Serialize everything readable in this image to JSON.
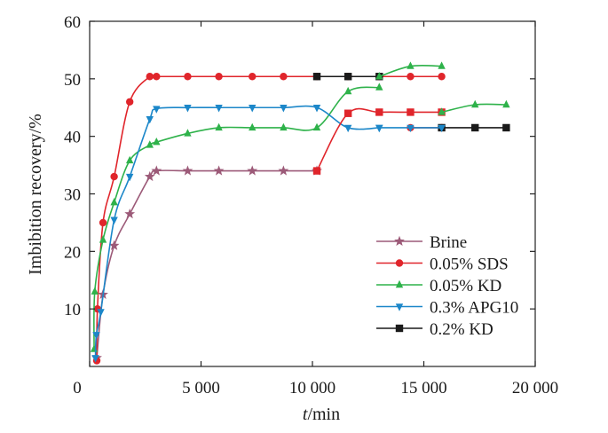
{
  "chart_data": {
    "type": "line",
    "xlabel_prefix": "t",
    "xlabel_suffix": "/min",
    "ylabel": "Imbibition recovery/%",
    "xlim": [
      0,
      20000
    ],
    "ylim": [
      0,
      60
    ],
    "x_ticks": [
      0,
      5000,
      10000,
      15000,
      20000
    ],
    "x_tick_labels": [
      "0",
      "5 000",
      "10 000",
      "15 000",
      "20 000"
    ],
    "y_ticks": [
      10,
      20,
      30,
      40,
      50,
      60
    ],
    "y_tick_labels": [
      "10",
      "20",
      "30",
      "40",
      "50",
      "60"
    ],
    "grid": false,
    "legend_position": "lower-right",
    "series": [
      {
        "name": "Brine",
        "color": "#9c5a78",
        "marker": "star",
        "x": [
          320,
          600,
          1100,
          1800,
          2700,
          3000,
          4400,
          5800,
          7300,
          8700,
          10200
        ],
        "y": [
          1.5,
          12.5,
          21,
          26.5,
          33,
          34,
          34,
          34,
          34,
          34,
          34
        ]
      },
      {
        "name": "0.05% SDS",
        "color": "#e0252b",
        "marker": "circle",
        "x": [
          320,
          350,
          600,
          1100,
          1800,
          2700,
          3000,
          4400,
          5800,
          7300,
          8700,
          10200,
          11600,
          13000,
          14400,
          15800
        ],
        "y": [
          1,
          10,
          25,
          33,
          46,
          50.4,
          50.4,
          50.4,
          50.4,
          50.4,
          50.4,
          50.4,
          50.4,
          50.4,
          50.4,
          50.4
        ]
      },
      {
        "name": "0.05% KD",
        "color": "#2eb24a",
        "marker": "triangle-up",
        "x": [
          200,
          230,
          600,
          1100,
          1800,
          2700,
          3000,
          4400,
          5800,
          7300,
          8700,
          10200,
          11600,
          13000
        ],
        "y": [
          3,
          13,
          22,
          28.5,
          35.8,
          38.5,
          39,
          40.5,
          41.5,
          41.5,
          41.5,
          41.5,
          47.8,
          48.5
        ]
      },
      {
        "name": "0.3% APG10",
        "color": "#1c87c9",
        "marker": "triangle-down",
        "x": [
          260,
          300,
          500,
          1100,
          1800,
          2700,
          3000,
          4400,
          5800,
          7300,
          8700,
          10200,
          11600,
          13000
        ],
        "y": [
          1.5,
          5.5,
          9.5,
          25.5,
          33,
          43,
          44.8,
          45,
          45,
          45,
          45,
          45,
          41.5,
          41.5
        ]
      },
      {
        "name": "0.2% KD",
        "color": "#1a1a1a",
        "marker": "square",
        "x": [
          10200,
          11600,
          13000
        ],
        "y": [
          50.4,
          50.4,
          50.4
        ]
      },
      {
        "name": "",
        "color": "#e0252b",
        "marker": "square",
        "x": [
          10200,
          11600,
          13000,
          14400,
          15800
        ],
        "y": [
          34,
          44,
          44.2,
          44.2,
          44.2
        ]
      },
      {
        "name": "",
        "color": "#e0252b",
        "marker": "circle",
        "x": [
          14400,
          15800
        ],
        "y": [
          41.5,
          41.5
        ]
      },
      {
        "name": "",
        "color": "#2eb24a",
        "marker": "triangle-up",
        "x": [
          13000,
          14400,
          15800
        ],
        "y": [
          50.4,
          52.2,
          52.2
        ]
      },
      {
        "name": "",
        "color": "#2eb24a",
        "marker": "triangle-up",
        "x": [
          15800,
          17300,
          18700
        ],
        "y": [
          44.2,
          45.5,
          45.5
        ]
      },
      {
        "name": "",
        "color": "#1a1a1a",
        "marker": "square",
        "x": [
          15800,
          17300,
          18700
        ],
        "y": [
          41.5,
          41.5,
          41.5
        ]
      },
      {
        "name": "",
        "color": "#1c87c9",
        "marker": "triangle-down",
        "x": [
          13000,
          14400,
          15800
        ],
        "y": [
          41.5,
          41.5,
          41.5
        ]
      }
    ]
  }
}
